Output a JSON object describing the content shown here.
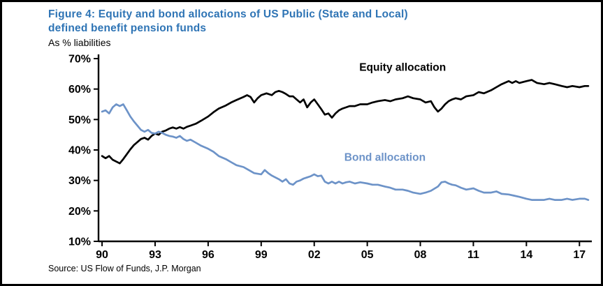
{
  "figure": {
    "title_line1": "Figure 4: Equity and bond allocations of US Public (State and Local)",
    "title_line2": "defined benefit pension funds",
    "subtitle": "As % liabilities",
    "source": "Source: US Flow of Funds, J.P. Morgan"
  },
  "colors": {
    "title": "#2E74B5",
    "axis": "#000000",
    "equity": "#000000",
    "bond": "#6D93C8"
  },
  "chart_data": {
    "type": "line",
    "title": "Figure 4: Equity and bond allocations of US Public (State and Local) defined benefit pension funds",
    "ylabel": "As % liabilities",
    "xlabel": "",
    "grid": false,
    "legend_position": "inline-labels",
    "ylim": [
      10,
      70
    ],
    "yticks": [
      10,
      20,
      30,
      40,
      50,
      60,
      70
    ],
    "ytick_format": "{v}%",
    "xlim": [
      1989.8,
      2017.7
    ],
    "xticks": [
      {
        "x": 1990,
        "label": "90"
      },
      {
        "x": 1993,
        "label": "93"
      },
      {
        "x": 1996,
        "label": "96"
      },
      {
        "x": 1999,
        "label": "99"
      },
      {
        "x": 2002,
        "label": "02"
      },
      {
        "x": 2005,
        "label": "05"
      },
      {
        "x": 2008,
        "label": "08"
      },
      {
        "x": 2011,
        "label": "11"
      },
      {
        "x": 2014,
        "label": "14"
      },
      {
        "x": 2017,
        "label": "17"
      }
    ],
    "series": [
      {
        "id": "equity",
        "name": "Equity allocation",
        "color": "#000000",
        "label_pos": {
          "x": 2007.0,
          "y": 66.0
        },
        "points": [
          [
            1990.0,
            38.0
          ],
          [
            1990.2,
            37.3
          ],
          [
            1990.4,
            38.0
          ],
          [
            1990.6,
            36.8
          ],
          [
            1990.8,
            36.2
          ],
          [
            1991.0,
            35.6
          ],
          [
            1991.2,
            37.0
          ],
          [
            1991.4,
            38.6
          ],
          [
            1991.6,
            40.2
          ],
          [
            1991.8,
            41.6
          ],
          [
            1992.0,
            42.6
          ],
          [
            1992.2,
            43.6
          ],
          [
            1992.4,
            44.0
          ],
          [
            1992.6,
            43.4
          ],
          [
            1992.8,
            44.6
          ],
          [
            1993.0,
            45.4
          ],
          [
            1993.2,
            45.0
          ],
          [
            1993.4,
            46.0
          ],
          [
            1993.6,
            46.4
          ],
          [
            1993.8,
            47.0
          ],
          [
            1994.0,
            47.4
          ],
          [
            1994.2,
            47.0
          ],
          [
            1994.4,
            47.5
          ],
          [
            1994.6,
            47.0
          ],
          [
            1994.8,
            47.6
          ],
          [
            1995.0,
            48.0
          ],
          [
            1995.3,
            48.6
          ],
          [
            1995.6,
            49.6
          ],
          [
            1996.0,
            51.0
          ],
          [
            1996.3,
            52.4
          ],
          [
            1996.6,
            53.6
          ],
          [
            1997.0,
            54.6
          ],
          [
            1997.3,
            55.6
          ],
          [
            1997.6,
            56.4
          ],
          [
            1998.0,
            57.4
          ],
          [
            1998.2,
            58.0
          ],
          [
            1998.4,
            57.4
          ],
          [
            1998.6,
            55.6
          ],
          [
            1998.8,
            57.0
          ],
          [
            1999.0,
            58.0
          ],
          [
            1999.3,
            58.6
          ],
          [
            1999.6,
            58.0
          ],
          [
            1999.8,
            59.0
          ],
          [
            2000.0,
            59.4
          ],
          [
            2000.2,
            59.0
          ],
          [
            2000.4,
            58.4
          ],
          [
            2000.6,
            57.6
          ],
          [
            2000.8,
            57.6
          ],
          [
            2001.0,
            56.6
          ],
          [
            2001.2,
            55.6
          ],
          [
            2001.4,
            56.6
          ],
          [
            2001.6,
            54.0
          ],
          [
            2001.8,
            55.6
          ],
          [
            2002.0,
            56.6
          ],
          [
            2002.2,
            55.0
          ],
          [
            2002.4,
            53.4
          ],
          [
            2002.6,
            51.6
          ],
          [
            2002.8,
            52.0
          ],
          [
            2003.0,
            50.6
          ],
          [
            2003.2,
            52.0
          ],
          [
            2003.4,
            53.0
          ],
          [
            2003.6,
            53.6
          ],
          [
            2003.8,
            54.0
          ],
          [
            2004.0,
            54.4
          ],
          [
            2004.3,
            54.4
          ],
          [
            2004.6,
            55.0
          ],
          [
            2005.0,
            55.0
          ],
          [
            2005.3,
            55.6
          ],
          [
            2005.6,
            56.0
          ],
          [
            2006.0,
            56.4
          ],
          [
            2006.3,
            56.0
          ],
          [
            2006.6,
            56.6
          ],
          [
            2007.0,
            57.0
          ],
          [
            2007.3,
            57.6
          ],
          [
            2007.6,
            57.0
          ],
          [
            2008.0,
            56.6
          ],
          [
            2008.3,
            55.6
          ],
          [
            2008.6,
            56.0
          ],
          [
            2008.8,
            54.0
          ],
          [
            2009.0,
            52.6
          ],
          [
            2009.2,
            53.6
          ],
          [
            2009.4,
            55.0
          ],
          [
            2009.6,
            56.0
          ],
          [
            2009.8,
            56.6
          ],
          [
            2010.0,
            57.0
          ],
          [
            2010.3,
            56.6
          ],
          [
            2010.6,
            57.6
          ],
          [
            2011.0,
            58.0
          ],
          [
            2011.3,
            59.0
          ],
          [
            2011.6,
            58.6
          ],
          [
            2012.0,
            59.6
          ],
          [
            2012.3,
            60.6
          ],
          [
            2012.6,
            61.6
          ],
          [
            2013.0,
            62.6
          ],
          [
            2013.2,
            62.0
          ],
          [
            2013.4,
            62.6
          ],
          [
            2013.6,
            62.0
          ],
          [
            2014.0,
            62.6
          ],
          [
            2014.3,
            63.0
          ],
          [
            2014.6,
            62.0
          ],
          [
            2015.0,
            61.6
          ],
          [
            2015.3,
            62.0
          ],
          [
            2015.6,
            61.6
          ],
          [
            2016.0,
            61.0
          ],
          [
            2016.3,
            60.6
          ],
          [
            2016.6,
            61.0
          ],
          [
            2017.0,
            60.6
          ],
          [
            2017.3,
            61.0
          ],
          [
            2017.5,
            61.0
          ]
        ]
      },
      {
        "id": "bond",
        "name": "Bond allocation",
        "color": "#6D93C8",
        "label_pos": {
          "x": 2006.0,
          "y": 36.5
        },
        "points": [
          [
            1990.0,
            52.6
          ],
          [
            1990.2,
            53.0
          ],
          [
            1990.4,
            52.0
          ],
          [
            1990.6,
            54.0
          ],
          [
            1990.8,
            55.0
          ],
          [
            1991.0,
            54.4
          ],
          [
            1991.2,
            55.0
          ],
          [
            1991.4,
            53.0
          ],
          [
            1991.6,
            51.0
          ],
          [
            1991.8,
            49.4
          ],
          [
            1992.0,
            48.0
          ],
          [
            1992.2,
            46.6
          ],
          [
            1992.4,
            46.0
          ],
          [
            1992.6,
            46.6
          ],
          [
            1992.8,
            45.6
          ],
          [
            1993.0,
            45.4
          ],
          [
            1993.2,
            46.0
          ],
          [
            1993.4,
            45.6
          ],
          [
            1993.6,
            45.0
          ],
          [
            1993.8,
            44.6
          ],
          [
            1994.0,
            44.4
          ],
          [
            1994.2,
            44.0
          ],
          [
            1994.4,
            44.6
          ],
          [
            1994.6,
            43.6
          ],
          [
            1994.8,
            43.0
          ],
          [
            1995.0,
            43.4
          ],
          [
            1995.3,
            42.4
          ],
          [
            1995.6,
            41.4
          ],
          [
            1996.0,
            40.4
          ],
          [
            1996.3,
            39.4
          ],
          [
            1996.6,
            38.0
          ],
          [
            1997.0,
            37.0
          ],
          [
            1997.3,
            36.0
          ],
          [
            1997.6,
            35.0
          ],
          [
            1998.0,
            34.4
          ],
          [
            1998.3,
            33.4
          ],
          [
            1998.6,
            32.4
          ],
          [
            1999.0,
            32.0
          ],
          [
            1999.2,
            33.4
          ],
          [
            1999.4,
            32.4
          ],
          [
            1999.6,
            31.6
          ],
          [
            1999.8,
            31.0
          ],
          [
            2000.0,
            30.4
          ],
          [
            2000.2,
            29.6
          ],
          [
            2000.4,
            30.4
          ],
          [
            2000.6,
            29.0
          ],
          [
            2000.8,
            28.6
          ],
          [
            2001.0,
            29.6
          ],
          [
            2001.2,
            30.0
          ],
          [
            2001.4,
            30.6
          ],
          [
            2001.6,
            31.0
          ],
          [
            2001.8,
            31.4
          ],
          [
            2002.0,
            32.0
          ],
          [
            2002.2,
            31.4
          ],
          [
            2002.4,
            31.6
          ],
          [
            2002.6,
            29.6
          ],
          [
            2002.8,
            29.0
          ],
          [
            2003.0,
            29.6
          ],
          [
            2003.2,
            29.0
          ],
          [
            2003.4,
            29.6
          ],
          [
            2003.6,
            29.0
          ],
          [
            2003.8,
            29.4
          ],
          [
            2004.0,
            29.6
          ],
          [
            2004.3,
            29.0
          ],
          [
            2004.6,
            29.4
          ],
          [
            2005.0,
            29.0
          ],
          [
            2005.3,
            28.6
          ],
          [
            2005.6,
            28.6
          ],
          [
            2006.0,
            28.0
          ],
          [
            2006.3,
            27.6
          ],
          [
            2006.6,
            27.0
          ],
          [
            2007.0,
            27.0
          ],
          [
            2007.3,
            26.6
          ],
          [
            2007.6,
            26.0
          ],
          [
            2008.0,
            25.6
          ],
          [
            2008.3,
            26.0
          ],
          [
            2008.6,
            26.6
          ],
          [
            2009.0,
            28.0
          ],
          [
            2009.2,
            29.4
          ],
          [
            2009.4,
            29.6
          ],
          [
            2009.6,
            29.0
          ],
          [
            2009.8,
            28.6
          ],
          [
            2010.0,
            28.4
          ],
          [
            2010.3,
            27.6
          ],
          [
            2010.6,
            27.0
          ],
          [
            2011.0,
            27.4
          ],
          [
            2011.3,
            26.6
          ],
          [
            2011.6,
            26.0
          ],
          [
            2012.0,
            26.0
          ],
          [
            2012.3,
            26.4
          ],
          [
            2012.6,
            25.6
          ],
          [
            2013.0,
            25.4
          ],
          [
            2013.3,
            25.0
          ],
          [
            2013.6,
            24.6
          ],
          [
            2014.0,
            24.0
          ],
          [
            2014.3,
            23.6
          ],
          [
            2014.6,
            23.6
          ],
          [
            2015.0,
            23.6
          ],
          [
            2015.3,
            24.0
          ],
          [
            2015.6,
            23.6
          ],
          [
            2016.0,
            23.6
          ],
          [
            2016.3,
            24.0
          ],
          [
            2016.6,
            23.6
          ],
          [
            2017.0,
            24.0
          ],
          [
            2017.3,
            24.0
          ],
          [
            2017.5,
            23.6
          ]
        ]
      }
    ]
  }
}
